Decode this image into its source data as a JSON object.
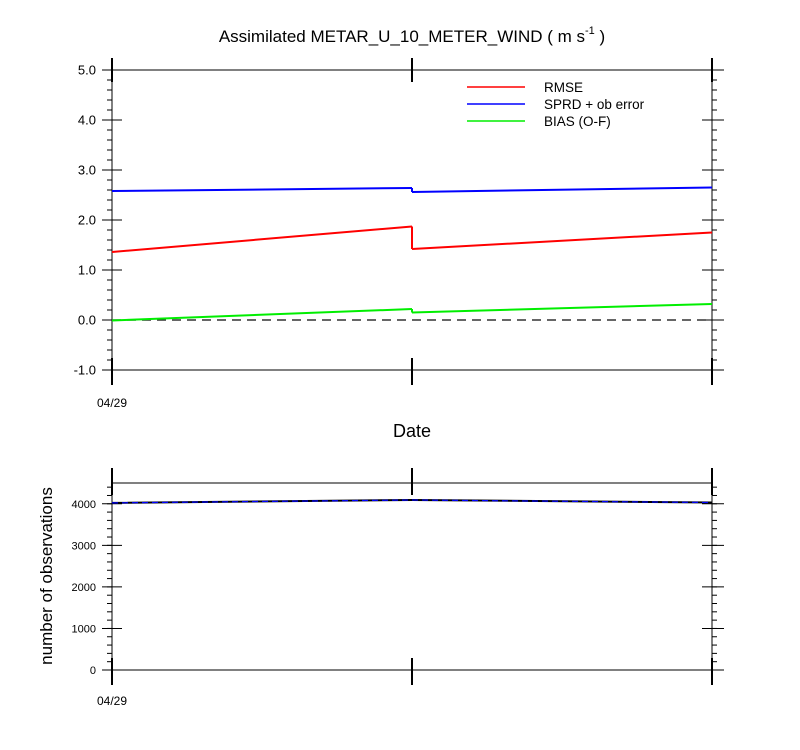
{
  "chart_data": [
    {
      "type": "line",
      "title_main": "Assimilated METAR_U_10_METER_WIND ( m s",
      "title_sup": "-1",
      "title_end": " )",
      "xlabel": "Date",
      "x_tick_label": "04/29",
      "ylim": [
        -1.0,
        5.0
      ],
      "y_ticks": [
        "-1.0",
        "0.0",
        "1.0",
        "2.0",
        "3.0",
        "4.0",
        "5.0"
      ],
      "zero_line": "dashed",
      "legend_placement": "top-right",
      "series": [
        {
          "name": "RMSE",
          "color": "#ff0000",
          "segments": [
            [
              [
                0,
                1.36
              ],
              [
                1,
                1.87
              ]
            ],
            [
              [
                1,
                1.42
              ],
              [
                2,
                1.75
              ]
            ]
          ]
        },
        {
          "name": "SPRD + ob error",
          "color": "#0000ff",
          "segments": [
            [
              [
                0,
                2.58
              ],
              [
                1,
                2.64
              ]
            ],
            [
              [
                1,
                2.56
              ],
              [
                2,
                2.65
              ]
            ]
          ]
        },
        {
          "name": "BIAS (O-F)",
          "color": "#00ee00",
          "segments": [
            [
              [
                0,
                -0.01
              ],
              [
                1,
                0.22
              ]
            ],
            [
              [
                1,
                0.15
              ],
              [
                2,
                0.32
              ]
            ]
          ]
        }
      ]
    },
    {
      "type": "line",
      "ylabel": "number of observations",
      "x_tick_label": "04/29",
      "ylim": [
        0,
        4500
      ],
      "y_ticks": [
        "0",
        "1000",
        "2000",
        "3000",
        "4000"
      ],
      "series": [
        {
          "color": "#000000",
          "values": [
            [
              0,
              4020
            ],
            [
              1,
              4090
            ],
            [
              2,
              4030
            ]
          ]
        },
        {
          "color": "#0000ff",
          "dashed": true,
          "values": [
            [
              0,
              4020
            ],
            [
              1,
              4090
            ],
            [
              2,
              4030
            ]
          ]
        }
      ]
    }
  ]
}
